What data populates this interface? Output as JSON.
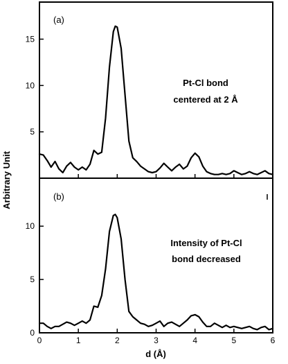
{
  "chart_data": [
    {
      "panel_tag": "(a)",
      "type": "line",
      "annotation": [
        "Pt-Cl bond",
        "centered at 2 Å"
      ],
      "xlim": [
        0,
        6
      ],
      "ylim": [
        0,
        19
      ],
      "y_ticks": [
        5,
        10,
        15
      ],
      "x_ticks": [],
      "series": [
        {
          "x": [
            0,
            0.1,
            0.2,
            0.3,
            0.4,
            0.5,
            0.6,
            0.7,
            0.8,
            0.9,
            1.0,
            1.1,
            1.2,
            1.3,
            1.4,
            1.5,
            1.6,
            1.7,
            1.8,
            1.9,
            1.95,
            2.0,
            2.1,
            2.2,
            2.3,
            2.4,
            2.5,
            2.6,
            2.7,
            2.8,
            2.9,
            3.0,
            3.1,
            3.2,
            3.3,
            3.4,
            3.5,
            3.6,
            3.7,
            3.8,
            3.9,
            4.0,
            4.1,
            4.2,
            4.3,
            4.4,
            4.5,
            4.6,
            4.7,
            4.8,
            4.9,
            5.0,
            5.1,
            5.2,
            5.3,
            5.4,
            5.5,
            5.6,
            5.7,
            5.8,
            5.9,
            6.0
          ],
          "y": [
            2.6,
            2.5,
            1.9,
            1.2,
            1.8,
            1.0,
            0.6,
            1.3,
            1.7,
            1.2,
            0.9,
            1.2,
            0.9,
            1.5,
            3.0,
            2.6,
            2.8,
            6.5,
            12.0,
            15.8,
            16.4,
            16.3,
            14.0,
            9.0,
            4.0,
            2.2,
            1.8,
            1.3,
            1.0,
            0.7,
            0.6,
            0.7,
            1.1,
            1.6,
            1.2,
            0.8,
            1.2,
            1.5,
            1.0,
            1.3,
            2.2,
            2.7,
            2.3,
            1.3,
            0.7,
            0.5,
            0.4,
            0.4,
            0.5,
            0.4,
            0.5,
            0.8,
            0.6,
            0.4,
            0.5,
            0.7,
            0.5,
            0.4,
            0.6,
            0.8,
            0.5,
            0.4
          ]
        }
      ]
    },
    {
      "panel_tag": "(b)",
      "type": "line",
      "annotation": [
        "Intensity of Pt-Cl",
        "bond decreased"
      ],
      "xlim": [
        0,
        6
      ],
      "ylim": [
        0,
        14.5
      ],
      "y_ticks": [
        0,
        5,
        10
      ],
      "x_ticks": [
        0,
        1,
        2,
        3,
        4,
        5,
        6
      ],
      "series": [
        {
          "x": [
            0,
            0.1,
            0.2,
            0.3,
            0.4,
            0.5,
            0.6,
            0.7,
            0.8,
            0.9,
            1.0,
            1.1,
            1.2,
            1.3,
            1.4,
            1.5,
            1.6,
            1.7,
            1.8,
            1.9,
            1.95,
            2.0,
            2.1,
            2.2,
            2.3,
            2.4,
            2.5,
            2.6,
            2.7,
            2.8,
            2.9,
            3.0,
            3.1,
            3.2,
            3.3,
            3.4,
            3.5,
            3.6,
            3.7,
            3.8,
            3.9,
            4.0,
            4.1,
            4.2,
            4.3,
            4.4,
            4.5,
            4.6,
            4.7,
            4.8,
            4.9,
            5.0,
            5.1,
            5.2,
            5.3,
            5.4,
            5.5,
            5.6,
            5.7,
            5.8,
            5.9,
            6.0
          ],
          "y": [
            0.9,
            0.9,
            0.6,
            0.4,
            0.6,
            0.6,
            0.8,
            1.0,
            0.9,
            0.7,
            0.9,
            1.1,
            0.9,
            1.2,
            2.5,
            2.4,
            3.5,
            6.0,
            9.5,
            11.0,
            11.1,
            10.8,
            8.8,
            5.0,
            2.0,
            1.5,
            1.2,
            0.9,
            0.8,
            0.6,
            0.7,
            0.9,
            1.1,
            0.6,
            0.9,
            1.0,
            0.8,
            0.6,
            0.9,
            1.2,
            1.6,
            1.7,
            1.5,
            1.0,
            0.6,
            0.6,
            0.9,
            0.7,
            0.5,
            0.7,
            0.5,
            0.6,
            0.5,
            0.4,
            0.5,
            0.6,
            0.4,
            0.3,
            0.5,
            0.6,
            0.3,
            0.4
          ]
        }
      ]
    }
  ],
  "labels": {
    "xlabel": "d (Å)",
    "ylabel": "Arbitrary Unit"
  }
}
